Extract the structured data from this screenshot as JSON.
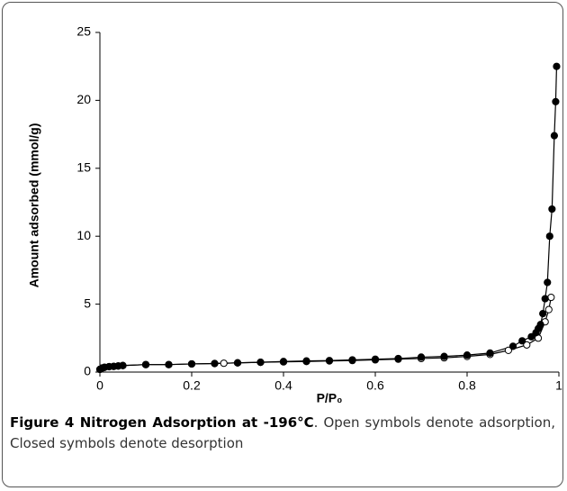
{
  "chart_data": {
    "type": "line",
    "x_label": "P/P₀",
    "y_label": "Amount adsorbed (mmol/g)",
    "caption": {
      "label": "Figure 4 Nitrogen Adsorption at -196°C",
      "text": ". Open symbols denote adsorption, Closed symbols denote desorption"
    },
    "xlim": [
      0,
      1
    ],
    "xticks": [
      0,
      0.2,
      0.4,
      0.6,
      0.8,
      1
    ],
    "ylim": [
      0,
      25
    ],
    "yticks": [
      0,
      5,
      10,
      15,
      20,
      25
    ],
    "grid": false,
    "series": [
      {
        "color": "#ffffff",
        "x": [
          0,
          0.005,
          0.01,
          0.02,
          0.03,
          0.04,
          0.05,
          0.1,
          0.15,
          0.2,
          0.25,
          0.27,
          0.3,
          0.35,
          0.4,
          0.45,
          0.5,
          0.55,
          0.6,
          0.65,
          0.7,
          0.75,
          0.8,
          0.85,
          0.89,
          0.93,
          0.955,
          0.97,
          0.978,
          0.983
        ],
        "values": [
          0.2,
          0.3,
          0.35,
          0.4,
          0.42,
          0.45,
          0.48,
          0.55,
          0.55,
          0.6,
          0.63,
          0.65,
          0.68,
          0.72,
          0.75,
          0.78,
          0.82,
          0.85,
          0.9,
          0.95,
          1.0,
          1.05,
          1.15,
          1.3,
          1.6,
          2.0,
          2.5,
          3.7,
          4.6,
          5.5
        ]
      },
      {
        "color": "#000000",
        "x": [
          0.995,
          0.993,
          0.99,
          0.985,
          0.98,
          0.975,
          0.97,
          0.965,
          0.96,
          0.955,
          0.95,
          0.94,
          0.92,
          0.9,
          0.85,
          0.8,
          0.75,
          0.7,
          0.65,
          0.6,
          0.55,
          0.5,
          0.45,
          0.4,
          0.35,
          0.3,
          0.25,
          0.2,
          0.15,
          0.1,
          0.05,
          0.04,
          0.03,
          0.02,
          0.01,
          0.005,
          0
        ],
        "values": [
          22.5,
          19.9,
          17.4,
          12.0,
          10.0,
          6.6,
          5.4,
          4.3,
          3.5,
          3.2,
          2.9,
          2.6,
          2.3,
          1.9,
          1.4,
          1.25,
          1.15,
          1.1,
          1.0,
          0.95,
          0.9,
          0.85,
          0.82,
          0.78,
          0.72,
          0.68,
          0.63,
          0.6,
          0.55,
          0.55,
          0.48,
          0.45,
          0.42,
          0.4,
          0.35,
          0.3,
          0.2
        ]
      }
    ]
  }
}
